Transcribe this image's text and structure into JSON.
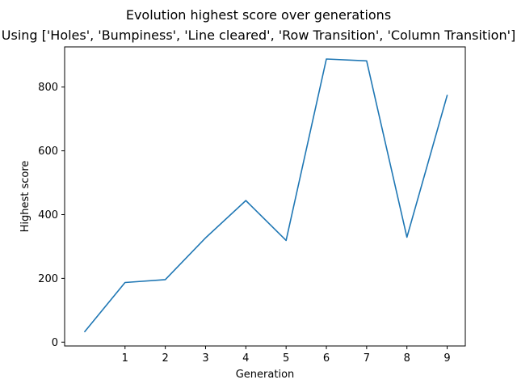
{
  "chart_data": {
    "type": "line",
    "title": "Evolution highest score over generations",
    "subtitle": "Using ['Holes', 'Bumpiness', 'Line cleared', 'Row Transition', 'Column Transition']",
    "xlabel": "Generation",
    "ylabel": "Highest score",
    "x": [
      0,
      1,
      2,
      3,
      4,
      5,
      6,
      7,
      8,
      9
    ],
    "x_tick_labels": [
      "1",
      "2",
      "3",
      "4",
      "5",
      "6",
      "7",
      "8",
      "9"
    ],
    "x_ticks": [
      1,
      2,
      3,
      4,
      5,
      6,
      7,
      8,
      9
    ],
    "y_ticks": [
      0,
      200,
      400,
      600,
      800
    ],
    "xlim": [
      -0.5,
      9.45
    ],
    "ylim": [
      -12,
      926
    ],
    "grid": false,
    "series": [
      {
        "values": [
          33,
          187,
          196,
          327,
          444,
          319,
          888,
          882,
          329,
          774
        ],
        "color": "#1f77b4"
      }
    ]
  }
}
